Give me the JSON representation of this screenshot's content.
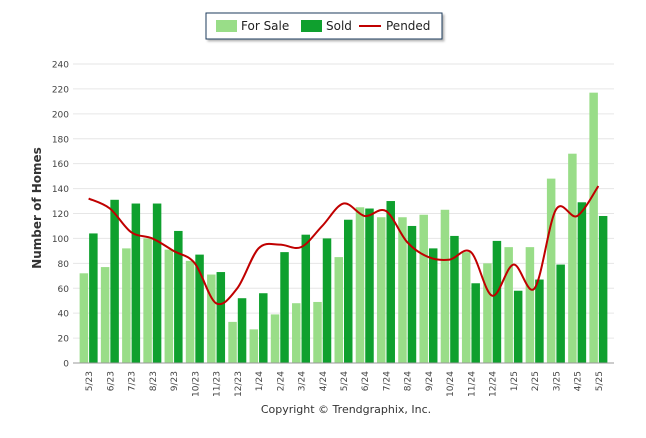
{
  "chart_data": {
    "type": "bar",
    "categories": [
      "5/23",
      "6/23",
      "7/23",
      "8/23",
      "9/23",
      "10/23",
      "11/23",
      "12/23",
      "1/24",
      "2/24",
      "3/24",
      "4/24",
      "5/24",
      "6/24",
      "7/24",
      "8/24",
      "9/24",
      "10/24",
      "11/24",
      "12/24",
      "1/25",
      "2/25",
      "3/25",
      "4/25",
      "5/25"
    ],
    "series": [
      {
        "name": "For Sale",
        "type": "bar",
        "color": "#99dd88",
        "values": [
          72,
          77,
          92,
          100,
          91,
          82,
          71,
          33,
          27,
          39,
          48,
          49,
          85,
          125,
          117,
          117,
          119,
          123,
          89,
          80,
          93,
          93,
          148,
          168,
          217
        ]
      },
      {
        "name": "Sold",
        "type": "bar",
        "color": "#0fa02e",
        "values": [
          104,
          131,
          128,
          128,
          106,
          87,
          73,
          52,
          56,
          89,
          103,
          100,
          115,
          124,
          130,
          110,
          92,
          102,
          64,
          98,
          58,
          67,
          79,
          129,
          118
        ]
      },
      {
        "name": "Pended",
        "type": "line",
        "color": "#c00000",
        "values": [
          132,
          124,
          105,
          100,
          90,
          80,
          48,
          60,
          92,
          95,
          93,
          110,
          128,
          118,
          122,
          97,
          85,
          83,
          89,
          54,
          79,
          60,
          123,
          118,
          142
        ]
      }
    ],
    "ylabel": "Number of Homes",
    "ylim": [
      0,
      240
    ],
    "yticks": [
      0,
      20,
      40,
      60,
      80,
      100,
      120,
      140,
      160,
      180,
      200,
      220,
      240
    ],
    "grid": true,
    "legend": "top-center",
    "footer": "Copyright © Trendgraphix, Inc."
  }
}
